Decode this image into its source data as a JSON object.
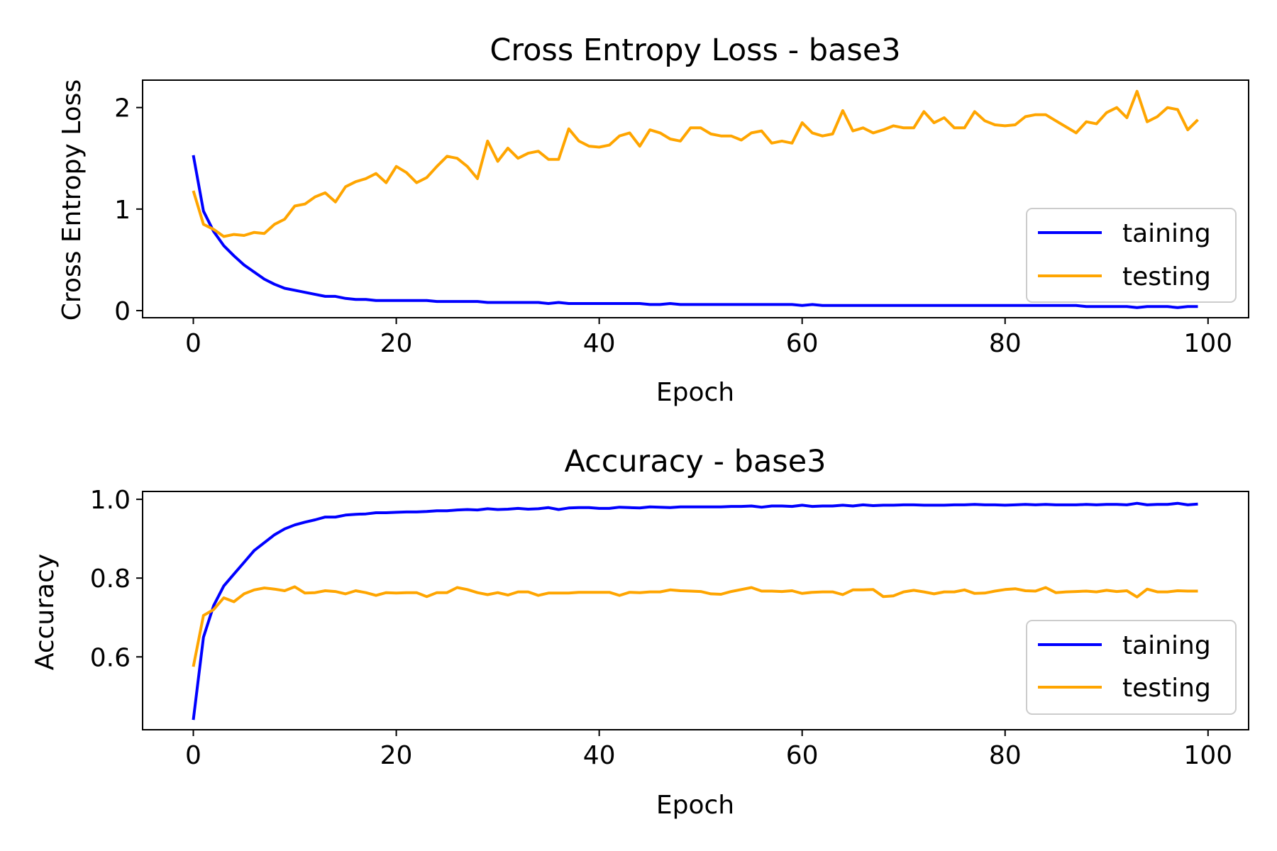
{
  "chart_data": [
    {
      "type": "line",
      "title": "Cross Entropy Loss - base3",
      "xlabel": "Epoch",
      "ylabel": "Cross Entropy Loss",
      "xlim": [
        -5,
        104
      ],
      "ylim": [
        -0.07,
        2.27
      ],
      "xticks": [
        0,
        20,
        40,
        60,
        80,
        100
      ],
      "yticks": [
        0,
        1,
        2
      ],
      "ytick_labels": [
        "0",
        "1",
        "2"
      ],
      "legend_position": "lower-right",
      "series": [
        {
          "name": "taining",
          "color": "#0000ff",
          "x": [
            0,
            1,
            2,
            3,
            4,
            5,
            6,
            7,
            8,
            9,
            10,
            11,
            12,
            13,
            14,
            15,
            16,
            17,
            18,
            19,
            20,
            21,
            22,
            23,
            24,
            25,
            26,
            27,
            28,
            29,
            30,
            31,
            32,
            33,
            34,
            35,
            36,
            37,
            38,
            39,
            40,
            41,
            42,
            43,
            44,
            45,
            46,
            47,
            48,
            49,
            50,
            51,
            52,
            53,
            54,
            55,
            56,
            57,
            58,
            59,
            60,
            61,
            62,
            63,
            64,
            65,
            66,
            67,
            68,
            69,
            70,
            71,
            72,
            73,
            74,
            75,
            76,
            77,
            78,
            79,
            80,
            81,
            82,
            83,
            84,
            85,
            86,
            87,
            88,
            89,
            90,
            91,
            92,
            93,
            94,
            95,
            96,
            97,
            98,
            99
          ],
          "y": [
            1.53,
            0.98,
            0.78,
            0.64,
            0.54,
            0.45,
            0.38,
            0.31,
            0.26,
            0.22,
            0.2,
            0.18,
            0.16,
            0.14,
            0.14,
            0.12,
            0.11,
            0.11,
            0.1,
            0.1,
            0.1,
            0.1,
            0.1,
            0.1,
            0.09,
            0.09,
            0.09,
            0.09,
            0.09,
            0.08,
            0.08,
            0.08,
            0.08,
            0.08,
            0.08,
            0.07,
            0.08,
            0.07,
            0.07,
            0.07,
            0.07,
            0.07,
            0.07,
            0.07,
            0.07,
            0.06,
            0.06,
            0.07,
            0.06,
            0.06,
            0.06,
            0.06,
            0.06,
            0.06,
            0.06,
            0.06,
            0.06,
            0.06,
            0.06,
            0.06,
            0.05,
            0.06,
            0.05,
            0.05,
            0.05,
            0.05,
            0.05,
            0.05,
            0.05,
            0.05,
            0.05,
            0.05,
            0.05,
            0.05,
            0.05,
            0.05,
            0.05,
            0.05,
            0.05,
            0.05,
            0.05,
            0.05,
            0.05,
            0.05,
            0.05,
            0.05,
            0.05,
            0.05,
            0.04,
            0.04,
            0.04,
            0.04,
            0.04,
            0.03,
            0.04,
            0.04,
            0.04,
            0.03,
            0.04,
            0.04
          ]
        },
        {
          "name": "testing",
          "color": "#ffa500",
          "x": [
            0,
            1,
            2,
            3,
            4,
            5,
            6,
            7,
            8,
            9,
            10,
            11,
            12,
            13,
            14,
            15,
            16,
            17,
            18,
            19,
            20,
            21,
            22,
            23,
            24,
            25,
            26,
            27,
            28,
            29,
            30,
            31,
            32,
            33,
            34,
            35,
            36,
            37,
            38,
            39,
            40,
            41,
            42,
            43,
            44,
            45,
            46,
            47,
            48,
            49,
            50,
            51,
            52,
            53,
            54,
            55,
            56,
            57,
            58,
            59,
            60,
            61,
            62,
            63,
            64,
            65,
            66,
            67,
            68,
            69,
            70,
            71,
            72,
            73,
            74,
            75,
            76,
            77,
            78,
            79,
            80,
            81,
            82,
            83,
            84,
            85,
            86,
            87,
            88,
            89,
            90,
            91,
            92,
            93,
            94,
            95,
            96,
            97,
            98,
            99
          ],
          "y": [
            1.18,
            0.85,
            0.8,
            0.73,
            0.75,
            0.74,
            0.77,
            0.76,
            0.85,
            0.9,
            1.03,
            1.05,
            1.12,
            1.16,
            1.07,
            1.22,
            1.27,
            1.3,
            1.35,
            1.26,
            1.42,
            1.36,
            1.26,
            1.31,
            1.42,
            1.52,
            1.5,
            1.42,
            1.3,
            1.67,
            1.47,
            1.6,
            1.5,
            1.55,
            1.57,
            1.49,
            1.49,
            1.79,
            1.67,
            1.62,
            1.61,
            1.63,
            1.72,
            1.75,
            1.62,
            1.78,
            1.75,
            1.69,
            1.67,
            1.8,
            1.8,
            1.74,
            1.72,
            1.72,
            1.68,
            1.75,
            1.77,
            1.65,
            1.67,
            1.65,
            1.85,
            1.75,
            1.72,
            1.74,
            1.97,
            1.77,
            1.8,
            1.75,
            1.78,
            1.82,
            1.8,
            1.8,
            1.96,
            1.85,
            1.9,
            1.8,
            1.8,
            1.96,
            1.87,
            1.83,
            1.82,
            1.83,
            1.91,
            1.93,
            1.93,
            1.87,
            1.81,
            1.75,
            1.86,
            1.84,
            1.95,
            2.0,
            1.9,
            2.16,
            1.86,
            1.91,
            2.0,
            1.98,
            1.78,
            1.88
          ]
        }
      ]
    },
    {
      "type": "line",
      "title": "Accuracy - base3",
      "xlabel": "Epoch",
      "ylabel": "Accuracy",
      "xlim": [
        -5,
        104
      ],
      "ylim": [
        0.415,
        1.02
      ],
      "xticks": [
        0,
        20,
        40,
        60,
        80,
        100
      ],
      "yticks": [
        0.6,
        0.8,
        1.0
      ],
      "ytick_labels": [
        "0.6",
        "0.8",
        "1.0"
      ],
      "legend_position": "lower-right",
      "series": [
        {
          "name": "taining",
          "color": "#0000ff",
          "x": [
            0,
            1,
            2,
            3,
            4,
            5,
            6,
            7,
            8,
            9,
            10,
            11,
            12,
            13,
            14,
            15,
            16,
            17,
            18,
            19,
            20,
            21,
            22,
            23,
            24,
            25,
            26,
            27,
            28,
            29,
            30,
            31,
            32,
            33,
            34,
            35,
            36,
            37,
            38,
            39,
            40,
            41,
            42,
            43,
            44,
            45,
            46,
            47,
            48,
            49,
            50,
            51,
            52,
            53,
            54,
            55,
            56,
            57,
            58,
            59,
            60,
            61,
            62,
            63,
            64,
            65,
            66,
            67,
            68,
            69,
            70,
            71,
            72,
            73,
            74,
            75,
            76,
            77,
            78,
            79,
            80,
            81,
            82,
            83,
            84,
            85,
            86,
            87,
            88,
            89,
            90,
            91,
            92,
            93,
            94,
            95,
            96,
            97,
            98,
            99
          ],
          "y": [
            0.44,
            0.65,
            0.73,
            0.78,
            0.81,
            0.84,
            0.87,
            0.89,
            0.91,
            0.925,
            0.935,
            0.942,
            0.948,
            0.955,
            0.955,
            0.96,
            0.962,
            0.963,
            0.966,
            0.966,
            0.967,
            0.968,
            0.968,
            0.969,
            0.971,
            0.971,
            0.973,
            0.974,
            0.973,
            0.976,
            0.974,
            0.975,
            0.977,
            0.975,
            0.976,
            0.979,
            0.974,
            0.978,
            0.979,
            0.979,
            0.977,
            0.977,
            0.98,
            0.979,
            0.978,
            0.981,
            0.98,
            0.979,
            0.981,
            0.981,
            0.981,
            0.981,
            0.981,
            0.982,
            0.982,
            0.983,
            0.98,
            0.983,
            0.983,
            0.982,
            0.985,
            0.982,
            0.983,
            0.983,
            0.985,
            0.983,
            0.986,
            0.984,
            0.985,
            0.985,
            0.986,
            0.986,
            0.985,
            0.985,
            0.985,
            0.986,
            0.986,
            0.987,
            0.986,
            0.986,
            0.985,
            0.986,
            0.987,
            0.986,
            0.987,
            0.986,
            0.986,
            0.986,
            0.987,
            0.986,
            0.987,
            0.987,
            0.986,
            0.99,
            0.986,
            0.987,
            0.987,
            0.99,
            0.986,
            0.988
          ]
        },
        {
          "name": "testing",
          "color": "#ffa500",
          "x": [
            0,
            1,
            2,
            3,
            4,
            5,
            6,
            7,
            8,
            9,
            10,
            11,
            12,
            13,
            14,
            15,
            16,
            17,
            18,
            19,
            20,
            21,
            22,
            23,
            24,
            25,
            26,
            27,
            28,
            29,
            30,
            31,
            32,
            33,
            34,
            35,
            36,
            37,
            38,
            39,
            40,
            41,
            42,
            43,
            44,
            45,
            46,
            47,
            48,
            49,
            50,
            51,
            52,
            53,
            54,
            55,
            56,
            57,
            58,
            59,
            60,
            61,
            62,
            63,
            64,
            65,
            66,
            67,
            68,
            69,
            70,
            71,
            72,
            73,
            74,
            75,
            76,
            77,
            78,
            79,
            80,
            81,
            82,
            83,
            84,
            85,
            86,
            87,
            88,
            89,
            90,
            91,
            92,
            93,
            94,
            95,
            96,
            97,
            98,
            99
          ],
          "y": [
            0.575,
            0.705,
            0.72,
            0.75,
            0.74,
            0.76,
            0.77,
            0.775,
            0.772,
            0.768,
            0.778,
            0.762,
            0.763,
            0.768,
            0.766,
            0.76,
            0.768,
            0.763,
            0.756,
            0.763,
            0.762,
            0.763,
            0.763,
            0.753,
            0.763,
            0.763,
            0.776,
            0.771,
            0.763,
            0.758,
            0.763,
            0.757,
            0.765,
            0.765,
            0.756,
            0.762,
            0.762,
            0.762,
            0.764,
            0.764,
            0.764,
            0.764,
            0.756,
            0.764,
            0.763,
            0.765,
            0.765,
            0.77,
            0.768,
            0.767,
            0.766,
            0.76,
            0.759,
            0.766,
            0.771,
            0.776,
            0.767,
            0.767,
            0.766,
            0.768,
            0.761,
            0.764,
            0.765,
            0.765,
            0.758,
            0.77,
            0.77,
            0.771,
            0.753,
            0.755,
            0.765,
            0.769,
            0.765,
            0.76,
            0.765,
            0.765,
            0.77,
            0.761,
            0.762,
            0.767,
            0.771,
            0.773,
            0.768,
            0.767,
            0.776,
            0.763,
            0.765,
            0.766,
            0.767,
            0.765,
            0.769,
            0.766,
            0.768,
            0.752,
            0.772,
            0.765,
            0.765,
            0.768,
            0.767,
            0.767
          ]
        }
      ]
    }
  ]
}
